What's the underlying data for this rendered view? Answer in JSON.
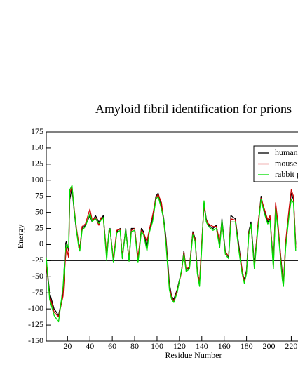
{
  "chart_data": {
    "type": "line",
    "title": "Amyloid fibril identification for prions",
    "xlabel": "Residue Number",
    "ylabel": "Energy",
    "xlim": [
      1,
      226
    ],
    "ylim": [
      -150,
      175
    ],
    "xticks": [
      20,
      40,
      60,
      80,
      100,
      120,
      140,
      160,
      180,
      200,
      220
    ],
    "yticks": [
      -150,
      -125,
      -100,
      -75,
      -50,
      -25,
      0,
      25,
      50,
      75,
      100,
      125,
      150,
      175
    ],
    "hline": -25,
    "x": [
      1,
      4,
      8,
      12,
      16,
      18,
      19,
      21,
      22,
      24,
      26,
      28,
      30,
      31,
      33,
      36,
      40,
      42,
      45,
      48,
      50,
      52,
      55,
      57,
      58,
      61,
      64,
      67,
      69,
      72,
      75,
      77,
      80,
      83,
      86,
      88,
      91,
      93,
      96,
      99,
      101,
      104,
      106,
      108,
      111,
      113,
      115,
      118,
      122,
      124,
      126,
      129,
      132,
      134,
      136,
      138,
      140,
      142,
      144,
      146,
      150,
      153,
      156,
      158,
      161,
      164,
      166,
      170,
      173,
      176,
      178,
      180,
      182,
      184,
      187,
      190,
      193,
      196,
      199,
      201,
      204,
      206,
      208,
      212,
      213,
      215,
      218,
      220,
      222,
      224
    ],
    "series": [
      {
        "name": "human",
        "color": "#000000",
        "values": [
          -25,
          -75,
          -100,
          -110,
          -75,
          0,
          5,
          -10,
          70,
          88,
          50,
          20,
          0,
          -5,
          25,
          30,
          45,
          35,
          45,
          35,
          40,
          45,
          -20,
          20,
          25,
          -25,
          20,
          25,
          -20,
          25,
          -25,
          25,
          25,
          -25,
          25,
          20,
          -5,
          20,
          40,
          75,
          80,
          60,
          40,
          10,
          -60,
          -80,
          -85,
          -70,
          -40,
          -10,
          -40,
          -35,
          20,
          10,
          -40,
          -60,
          0,
          65,
          40,
          30,
          25,
          30,
          0,
          40,
          -10,
          -20,
          45,
          40,
          0,
          -40,
          -55,
          -40,
          20,
          35,
          -30,
          25,
          75,
          50,
          35,
          40,
          -30,
          60,
          30,
          -45,
          -60,
          0,
          50,
          80,
          70,
          0
        ]
      },
      {
        "name": "mouse",
        "color": "#cc0000",
        "values": [
          -30,
          -80,
          -105,
          -112,
          -80,
          -25,
          -5,
          -20,
          80,
          90,
          55,
          25,
          2,
          -8,
          28,
          32,
          55,
          38,
          42,
          30,
          42,
          40,
          -15,
          18,
          22,
          -22,
          22,
          24,
          -18,
          22,
          -22,
          22,
          25,
          -20,
          22,
          18,
          5,
          22,
          45,
          72,
          78,
          65,
          35,
          5,
          -65,
          -82,
          -88,
          -72,
          -42,
          -12,
          -38,
          -35,
          18,
          8,
          -42,
          -58,
          5,
          60,
          38,
          32,
          28,
          28,
          5,
          35,
          -12,
          -18,
          40,
          38,
          -5,
          -38,
          -58,
          -42,
          18,
          30,
          -35,
          28,
          72,
          55,
          38,
          45,
          -35,
          65,
          35,
          -50,
          -62,
          5,
          55,
          85,
          75,
          -5
        ]
      },
      {
        "name": "rabbit p",
        "color": "#00dd00",
        "values": [
          -20,
          -85,
          -110,
          -120,
          -65,
          -10,
          0,
          -5,
          85,
          92,
          52,
          22,
          -5,
          -10,
          22,
          28,
          48,
          36,
          40,
          33,
          38,
          42,
          -25,
          22,
          24,
          -28,
          18,
          22,
          -22,
          23,
          -26,
          20,
          22,
          -28,
          20,
          15,
          -10,
          18,
          35,
          70,
          75,
          55,
          38,
          0,
          -70,
          -85,
          -90,
          -75,
          -38,
          -15,
          -42,
          -38,
          15,
          5,
          -45,
          -65,
          -5,
          68,
          35,
          28,
          22,
          25,
          -5,
          38,
          -15,
          -22,
          35,
          35,
          -8,
          -45,
          -60,
          -45,
          15,
          32,
          -38,
          20,
          70,
          48,
          32,
          38,
          -38,
          55,
          25,
          -55,
          -65,
          -5,
          45,
          70,
          65,
          -10
        ]
      }
    ]
  }
}
